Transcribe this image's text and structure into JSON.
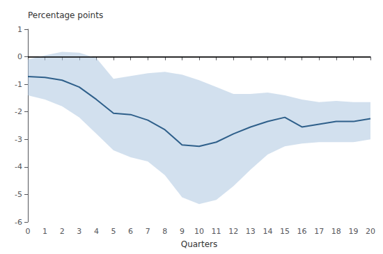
{
  "chart_data": {
    "type": "line",
    "xlabel": "Quarters",
    "ylabel": "Percentage points",
    "x": [
      0,
      1,
      2,
      3,
      4,
      5,
      6,
      7,
      8,
      9,
      10,
      11,
      12,
      13,
      14,
      15,
      16,
      17,
      18,
      19,
      20
    ],
    "series": [
      {
        "type": "band",
        "color": "#adc6e0",
        "lower": [
          -1.4,
          -1.55,
          -1.8,
          -2.2,
          -2.8,
          -3.4,
          -3.65,
          -3.8,
          -4.3,
          -5.1,
          -5.35,
          -5.2,
          -4.7,
          -4.1,
          -3.55,
          -3.25,
          -3.15,
          -3.1,
          -3.1,
          -3.1,
          -3.0
        ],
        "upper": [
          -0.1,
          0.05,
          0.18,
          0.15,
          -0.05,
          -0.8,
          -0.7,
          -0.6,
          -0.55,
          -0.65,
          -0.85,
          -1.1,
          -1.35,
          -1.35,
          -1.3,
          -1.4,
          -1.55,
          -1.65,
          -1.6,
          -1.65,
          -1.65
        ]
      },
      {
        "type": "line",
        "color": "#2e5f8a",
        "values": [
          -0.72,
          -0.75,
          -0.85,
          -1.1,
          -1.55,
          -2.05,
          -2.1,
          -2.3,
          -2.65,
          -3.2,
          -3.25,
          -3.1,
          -2.8,
          -2.55,
          -2.35,
          -2.2,
          -2.55,
          -2.45,
          -2.35,
          -2.35,
          -2.25
        ]
      }
    ],
    "hlines": [
      {
        "value": 0,
        "color": "#000000"
      }
    ],
    "xlim": [
      0,
      20
    ],
    "xticks": [
      0,
      1,
      2,
      3,
      4,
      5,
      6,
      7,
      8,
      9,
      10,
      11,
      12,
      13,
      14,
      15,
      16,
      17,
      18,
      19,
      20
    ],
    "ylim": [
      -6,
      1
    ],
    "yticks": [
      1,
      0,
      -1,
      -2,
      -3,
      -4,
      -5,
      -6
    ],
    "grid": false
  }
}
